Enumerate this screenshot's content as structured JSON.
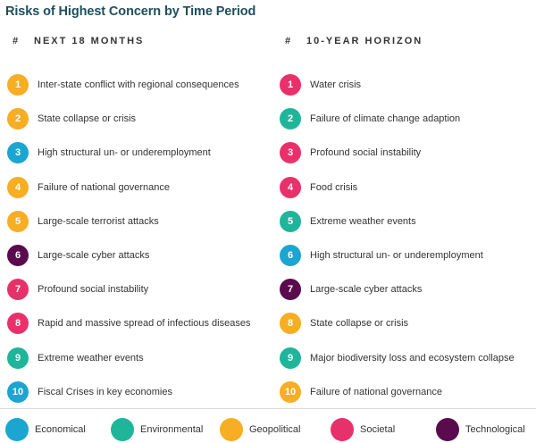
{
  "title": "Risks of Highest Concern by Time Period",
  "categories": {
    "economical": {
      "label": "Economical",
      "color": "#1aa6d1"
    },
    "environmental": {
      "label": "Environmental",
      "color": "#1fb59a"
    },
    "geopolitical": {
      "label": "Geopolitical",
      "color": "#f7ad24"
    },
    "societal": {
      "label": "Societal",
      "color": "#e8316b"
    },
    "technological": {
      "label": "Technological",
      "color": "#5a0b4d"
    }
  },
  "columns": [
    {
      "hash": "#",
      "heading": "NEXT 18 MONTHS",
      "items": [
        {
          "num": "1",
          "label": "Inter-state conflict with regional consequences",
          "category": "geopolitical"
        },
        {
          "num": "2",
          "label": "State collapse or crisis",
          "category": "geopolitical"
        },
        {
          "num": "3",
          "label": "High structural un- or underemployment",
          "category": "economical"
        },
        {
          "num": "4",
          "label": "Failure of national governance",
          "category": "geopolitical"
        },
        {
          "num": "5",
          "label": "Large-scale terrorist attacks",
          "category": "geopolitical"
        },
        {
          "num": "6",
          "label": "Large-scale cyber attacks",
          "category": "technological"
        },
        {
          "num": "7",
          "label": "Profound social instability",
          "category": "societal"
        },
        {
          "num": "8",
          "label": "Rapid and massive spread of infectious diseases",
          "category": "societal"
        },
        {
          "num": "9",
          "label": "Extreme weather events",
          "category": "environmental"
        },
        {
          "num": "10",
          "label": "Fiscal Crises in key economies",
          "category": "economical"
        }
      ]
    },
    {
      "hash": "#",
      "heading": "10-YEAR HORIZON",
      "items": [
        {
          "num": "1",
          "label": "Water crisis",
          "category": "societal"
        },
        {
          "num": "2",
          "label": "Failure of climate change adaption",
          "category": "environmental"
        },
        {
          "num": "3",
          "label": "Profound social instability",
          "category": "societal"
        },
        {
          "num": "4",
          "label": "Food crisis",
          "category": "societal"
        },
        {
          "num": "5",
          "label": "Extreme weather events",
          "category": "environmental"
        },
        {
          "num": "6",
          "label": "High structural un- or underemployment",
          "category": "economical"
        },
        {
          "num": "7",
          "label": "Large-scale cyber attacks",
          "category": "technological"
        },
        {
          "num": "8",
          "label": "State collapse or crisis",
          "category": "geopolitical"
        },
        {
          "num": "9",
          "label": "Major biodiversity loss and ecosystem collapse",
          "category": "environmental"
        },
        {
          "num": "10",
          "label": "Failure of national governance",
          "category": "geopolitical"
        }
      ]
    }
  ],
  "legend": [
    "economical",
    "environmental",
    "geopolitical",
    "societal",
    "technological"
  ]
}
